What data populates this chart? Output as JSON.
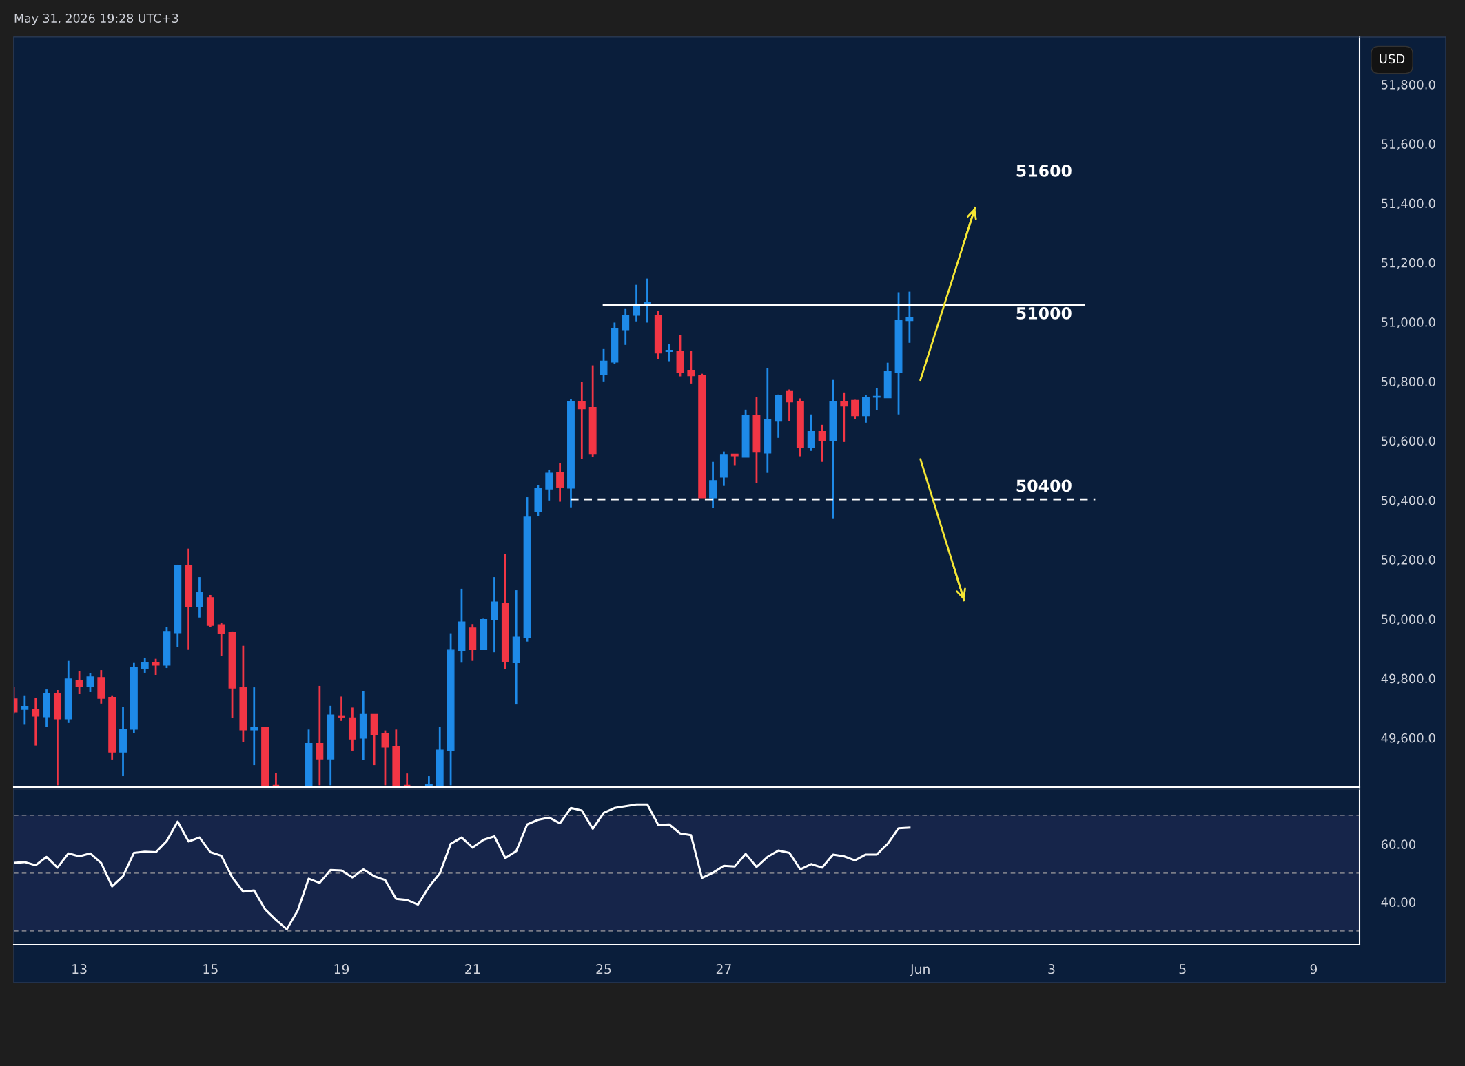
{
  "chart_data": [
    {
      "type": "candlestick",
      "title": "May 31, 2026 19:28 UTC+3",
      "ylabel": "USD",
      "categories": [
        null,
        null,
        null,
        null,
        null,
        null,
        null,
        null,
        null,
        null,
        null,
        null,
        null,
        null,
        null,
        null,
        null,
        null,
        null,
        null,
        null,
        null,
        null,
        null,
        null,
        null,
        null,
        null,
        null,
        null,
        null,
        null,
        null,
        null,
        null,
        null,
        null,
        null,
        null,
        null,
        null,
        null,
        null,
        null,
        null,
        null,
        null,
        null,
        null,
        null,
        null,
        null,
        null,
        null,
        null,
        null,
        null,
        null,
        null,
        null,
        null,
        null,
        null,
        null,
        null,
        null,
        null,
        null,
        null,
        null,
        null,
        null,
        null,
        null,
        null,
        null,
        null,
        null,
        null,
        null,
        null,
        null,
        null,
        null,
        null,
        null,
        null,
        null,
        null,
        null,
        null,
        null,
        null,
        null,
        null,
        null,
        null,
        null,
        null,
        null,
        null,
        null,
        null,
        null,
        null,
        null,
        null,
        null,
        null,
        null,
        null,
        null,
        null,
        null,
        null,
        null,
        null,
        null,
        null,
        null,
        null,
        null,
        null,
        null
      ],
      "ohlc": [
        [
          49731,
          49770,
          49681,
          49687
        ],
        [
          49696,
          49743,
          49644,
          49706
        ],
        [
          49696,
          49735,
          49574,
          49673
        ],
        [
          49671,
          49763,
          49638,
          49750
        ],
        [
          49750,
          49761,
          49440,
          49664
        ],
        [
          49664,
          49859,
          49650,
          49798
        ],
        [
          49794,
          49824,
          49747,
          49773
        ],
        [
          49773,
          49817,
          49754,
          49805
        ],
        [
          49803,
          49828,
          49715,
          49733
        ],
        [
          49736,
          49743,
          49527,
          49552
        ],
        [
          49552,
          49703,
          49471,
          49629
        ],
        [
          49629,
          49852,
          49617,
          49838
        ],
        [
          49833,
          49870,
          49819,
          49852
        ],
        [
          49854,
          49866,
          49812,
          49845
        ],
        [
          49845,
          49974,
          49835,
          49956
        ],
        [
          49954,
          50183,
          49905,
          50181
        ],
        [
          50181,
          50237,
          49896,
          50042
        ],
        [
          50042,
          50141,
          50005,
          50090
        ],
        [
          50072,
          50081,
          49974,
          49979
        ],
        [
          49981,
          49988,
          49875,
          49951
        ],
        [
          49954,
          49956,
          49666,
          49768
        ],
        [
          49770,
          49910,
          49585,
          49627
        ],
        [
          49627,
          49770,
          49508,
          49636
        ],
        [
          49636,
          49636,
          49440,
          49440
        ],
        [
          49440,
          49482,
          49440,
          49440
        ],
        null,
        null,
        [
          49440,
          49628,
          49440,
          49581
        ],
        [
          49581,
          49775,
          49440,
          49529
        ],
        [
          49529,
          49708,
          49440,
          49677
        ],
        [
          49672,
          49739,
          49657,
          49670
        ],
        [
          49667,
          49702,
          49557,
          49596
        ],
        [
          49599,
          49757,
          49526,
          49679
        ],
        [
          49679,
          49679,
          49508,
          49610
        ],
        [
          49614,
          49625,
          49440,
          49569
        ],
        [
          49570,
          49628,
          49440,
          49440
        ],
        [
          49440,
          49480,
          49440,
          49440
        ],
        null,
        [
          49440,
          49471,
          49440,
          49442
        ],
        [
          49440,
          49637,
          49440,
          49559
        ],
        [
          49557,
          49952,
          49440,
          49895
        ],
        [
          49893,
          50102,
          49853,
          49990
        ],
        [
          49970,
          49983,
          49859,
          49897
        ],
        [
          49897,
          50001,
          49897,
          49998
        ],
        [
          49998,
          50141,
          49888,
          50057
        ],
        [
          50054,
          50220,
          49832,
          49856
        ],
        [
          49853,
          50097,
          49712,
          49939
        ],
        [
          49939,
          50410,
          49924,
          50343
        ],
        [
          50361,
          50451,
          50346,
          50441
        ],
        [
          50438,
          50503,
          50399,
          50491
        ],
        [
          50492,
          50525,
          50395,
          50443
        ],
        [
          50441,
          50740,
          50376,
          50733
        ],
        [
          50733,
          50798,
          50538,
          50708
        ],
        [
          50712,
          50854,
          50545,
          50555
        ],
        [
          50824,
          50909,
          50800,
          50868
        ],
        [
          50865,
          50998,
          50858,
          50977
        ],
        [
          50974,
          51046,
          50923,
          51023
        ],
        [
          51023,
          51125,
          51002,
          51060
        ],
        [
          51058,
          51146,
          50998,
          51067
        ],
        [
          51021,
          51037,
          50875,
          50896
        ],
        [
          50901,
          50926,
          50868,
          50905
        ],
        [
          50900,
          50956,
          50817,
          50831
        ],
        [
          50835,
          50903,
          50793,
          50819
        ],
        [
          50819,
          50826,
          50408,
          50408
        ],
        [
          50408,
          50529,
          50374,
          50466
        ],
        [
          50478,
          50564,
          50448,
          50552
        ],
        [
          50555,
          50555,
          50518,
          50550
        ],
        [
          50545,
          50705,
          50545,
          50687
        ],
        [
          50687,
          50747,
          50457,
          50562
        ],
        [
          50559,
          50844,
          50492,
          50671
        ],
        [
          50666,
          50756,
          50610,
          50752
        ],
        [
          50766,
          50773,
          50666,
          50731
        ],
        [
          50733,
          50743,
          50548,
          50578
        ],
        [
          50578,
          50689,
          50566,
          50631
        ],
        [
          50631,
          50654,
          50529,
          50601
        ],
        [
          50601,
          50805,
          50339,
          50733
        ],
        [
          50733,
          50763,
          50596,
          50717
        ],
        [
          50736,
          50738,
          50673,
          50685
        ],
        [
          50685,
          50754,
          50661,
          50745
        ],
        [
          50747,
          50777,
          50703,
          50750
        ],
        [
          50745,
          50863,
          50745,
          50833
        ],
        [
          50831,
          51100,
          50689,
          51007
        ],
        [
          51005,
          51102,
          50930,
          51014
        ],
        null,
        null,
        null,
        null,
        null,
        null,
        null,
        null,
        null,
        null,
        null,
        null,
        null,
        null,
        null,
        null,
        null,
        null,
        null,
        null,
        null,
        null,
        null,
        null,
        null,
        null,
        null,
        null,
        null,
        null,
        null,
        null,
        null,
        null,
        null,
        null,
        null,
        null,
        null,
        null,
        null
      ],
      "colors": [
        "#f23645",
        "#1e8ae8",
        "#f23645",
        "#1e8ae8",
        "#f23645",
        "#1e8ae8",
        "#f23645",
        "#1e8ae8",
        "#f23645",
        "#f23645",
        "#1e8ae8",
        "#1e8ae8",
        "#1e8ae8",
        "#f23645",
        "#1e8ae8",
        "#1e8ae8",
        "#f23645",
        "#1e8ae8",
        "#f23645",
        "#f23645",
        "#f23645",
        "#f23645",
        "#1e8ae8",
        "#f23645",
        "#f23645",
        null,
        null,
        "#1e8ae8",
        "#f23645",
        "#1e8ae8",
        "#f23645",
        "#f23645",
        "#1e8ae8",
        "#f23645",
        "#f23645",
        "#f23645",
        "#f23645",
        null,
        "#1e8ae8",
        "#1e8ae8",
        "#1e8ae8",
        "#1e8ae8",
        "#f23645",
        "#1e8ae8",
        "#1e8ae8",
        "#f23645",
        "#1e8ae8",
        "#1e8ae8",
        "#1e8ae8",
        "#1e8ae8",
        "#f23645",
        "#1e8ae8",
        "#f23645",
        "#f23645",
        "#1e8ae8",
        "#1e8ae8",
        "#1e8ae8",
        "#1e8ae8",
        "#1e8ae8",
        "#f23645",
        "#1e8ae8",
        "#f23645",
        "#f23645",
        "#f23645",
        "#1e8ae8",
        "#1e8ae8",
        "#f23645",
        "#1e8ae8",
        "#f23645",
        "#1e8ae8",
        "#1e8ae8",
        "#f23645",
        "#f23645",
        "#1e8ae8",
        "#f23645",
        "#1e8ae8",
        "#f23645",
        "#f23645",
        "#1e8ae8",
        "#1e8ae8",
        "#1e8ae8",
        "#1e8ae8",
        "#1e8ae8",
        null,
        null,
        null,
        null,
        null,
        null,
        null,
        null,
        null,
        null,
        null,
        null,
        null,
        null,
        null,
        null,
        null,
        null,
        null,
        null,
        null,
        null,
        null,
        null,
        null,
        null,
        null,
        null,
        null,
        null,
        null,
        null,
        null,
        null,
        null,
        null,
        null,
        null,
        null,
        null,
        null
      ],
      "series": [
        {
          "type": "line",
          "color": "#ffffff",
          "line_style": "solid",
          "values": [
            null,
            null,
            null,
            null,
            null,
            null,
            null,
            null,
            null,
            null,
            null,
            null,
            null,
            null,
            null,
            null,
            null,
            null,
            null,
            null,
            null,
            null,
            null,
            null,
            null,
            null,
            null,
            null,
            null,
            null,
            null,
            null,
            null,
            null,
            null,
            null,
            null,
            null,
            null,
            null,
            null,
            null,
            null,
            null,
            null,
            null,
            null,
            null,
            null,
            null,
            null,
            null,
            null,
            null,
            51057,
            51057,
            51057,
            51057,
            51057,
            51057,
            51057,
            51057,
            51057,
            51057,
            51057,
            51057,
            51057,
            51057,
            51057,
            51057,
            51057,
            51057,
            51057,
            51057,
            51057,
            51057,
            51057,
            51057,
            51057,
            51057,
            51057,
            51057,
            51057,
            51057,
            51057,
            51057,
            51057,
            51057,
            51057,
            51057,
            51057,
            51057,
            51057,
            51057,
            51057,
            51057,
            51057,
            51057,
            51057,
            null,
            null,
            null,
            null,
            null,
            null,
            null,
            null,
            null,
            null,
            null,
            null,
            null,
            null,
            null,
            null,
            null,
            null,
            null,
            null,
            null,
            null,
            null,
            null,
            null
          ]
        },
        {
          "type": "line",
          "color": "#ffffff",
          "line_style": "dashed",
          "values": [
            null,
            null,
            null,
            null,
            null,
            null,
            null,
            null,
            null,
            null,
            null,
            null,
            null,
            null,
            null,
            null,
            null,
            null,
            null,
            null,
            null,
            null,
            null,
            null,
            null,
            null,
            null,
            null,
            null,
            null,
            null,
            null,
            null,
            null,
            null,
            null,
            null,
            null,
            null,
            null,
            null,
            null,
            null,
            null,
            null,
            null,
            null,
            null,
            null,
            null,
            null,
            50403,
            50403,
            50403,
            50403,
            50403,
            50403,
            50403,
            50403,
            50403,
            50403,
            50403,
            50403,
            50403,
            50403,
            50403,
            50403,
            50403,
            50403,
            50403,
            50403,
            50403,
            50403,
            50403,
            50403,
            50403,
            50403,
            50403,
            50403,
            50403,
            50403,
            50403,
            50403,
            50403,
            50403,
            50403,
            50403,
            50403,
            50403,
            50403,
            50403,
            50403,
            50403,
            50403,
            50403,
            50403,
            50403,
            50403,
            50403,
            50403,
            null,
            null,
            null,
            null,
            null,
            null,
            null,
            null,
            null,
            null,
            null,
            null,
            null,
            null,
            null,
            null,
            null,
            null,
            null,
            null,
            null,
            null,
            null,
            null
          ]
        },
        {
          "type": "line",
          "color": "#f5e634",
          "line_style": "solid",
          "values": [
            null,
            null,
            null,
            null,
            null,
            null,
            null,
            null,
            null,
            null,
            null,
            null,
            null,
            null,
            null,
            null,
            null,
            null,
            null,
            null,
            null,
            null,
            null,
            null,
            null,
            null,
            null,
            null,
            null,
            null,
            null,
            null,
            null,
            null,
            null,
            null,
            null,
            null,
            null,
            null,
            null,
            null,
            null,
            null,
            null,
            null,
            null,
            null,
            null,
            null,
            null,
            null,
            null,
            null,
            null,
            null,
            null,
            null,
            null,
            null,
            null,
            null,
            null,
            null,
            null,
            null,
            null,
            null,
            null,
            null,
            null,
            null,
            null,
            null,
            null,
            null,
            null,
            null,
            null,
            null,
            null,
            null,
            null,
            50805,
            50921,
            51037,
            51153,
            51269,
            51385,
            null,
            null,
            null,
            null,
            null,
            null,
            null,
            null,
            null,
            null,
            null,
            null,
            null,
            null,
            null,
            null,
            null,
            null,
            null,
            null,
            null,
            null,
            null,
            null,
            null,
            null,
            null,
            null,
            null,
            null,
            null,
            null,
            null,
            null,
            null
          ]
        },
        {
          "type": "line",
          "color": "#f5e634",
          "line_style": "solid",
          "values": [
            null,
            null,
            null,
            null,
            null,
            null,
            null,
            null,
            null,
            null,
            null,
            null,
            null,
            null,
            null,
            null,
            null,
            null,
            null,
            null,
            null,
            null,
            null,
            null,
            null,
            null,
            null,
            null,
            null,
            null,
            null,
            null,
            null,
            null,
            null,
            null,
            null,
            null,
            null,
            null,
            null,
            null,
            null,
            null,
            null,
            null,
            null,
            null,
            null,
            null,
            null,
            null,
            null,
            null,
            null,
            null,
            null,
            null,
            null,
            null,
            null,
            null,
            null,
            null,
            null,
            null,
            null,
            null,
            null,
            null,
            null,
            null,
            null,
            null,
            null,
            null,
            null,
            null,
            null,
            null,
            null,
            null,
            null,
            50538,
            50419,
            50300,
            50182,
            50063,
            null,
            null,
            null,
            null,
            null,
            null,
            null,
            null,
            null,
            null,
            null,
            null,
            null,
            null,
            null,
            null,
            null,
            null,
            null,
            null,
            null,
            null,
            null,
            null,
            null,
            null,
            null,
            null,
            null,
            null,
            null,
            null,
            null,
            null,
            null,
            null
          ]
        }
      ],
      "annotations": [
        "51600",
        "51000",
        "50400"
      ],
      "ylim": [
        49434,
        51959
      ],
      "yticks": [
        {
          "value": 49600,
          "label": "49,600.0"
        },
        {
          "value": 49800,
          "label": "49,800.0"
        },
        {
          "value": 50000,
          "label": "50,000.0"
        },
        {
          "value": 50200,
          "label": "50,200.0"
        },
        {
          "value": 50400,
          "label": "50,400.0"
        },
        {
          "value": 50600,
          "label": "50,600.0"
        },
        {
          "value": 50800,
          "label": "50,800.0"
        },
        {
          "value": 51000,
          "label": "51,000.0"
        },
        {
          "value": 51200,
          "label": "51,200.0"
        },
        {
          "value": 51400,
          "label": "51,400.0"
        },
        {
          "value": 51600,
          "label": "51,600.0"
        },
        {
          "value": 51800,
          "label": "51,800.0"
        }
      ],
      "tick_labels": "y",
      "grid": false,
      "legend": false
    },
    {
      "type": "line",
      "categories": [
        null,
        null,
        null,
        null,
        null,
        null,
        "13",
        null,
        null,
        null,
        null,
        null,
        null,
        null,
        null,
        null,
        null,
        null,
        "15",
        null,
        null,
        null,
        null,
        null,
        null,
        null,
        null,
        null,
        null,
        null,
        "19",
        null,
        null,
        null,
        null,
        null,
        null,
        null,
        null,
        null,
        null,
        null,
        "21",
        null,
        null,
        null,
        null,
        null,
        null,
        null,
        null,
        null,
        null,
        null,
        "25",
        null,
        null,
        null,
        null,
        null,
        null,
        null,
        null,
        null,
        null,
        "27",
        null,
        null,
        null,
        null,
        null,
        null,
        null,
        null,
        null,
        null,
        null,
        null,
        null,
        null,
        null,
        null,
        null,
        "Jun",
        null,
        null,
        null,
        null,
        null,
        null,
        null,
        null,
        null,
        null,
        null,
        "3",
        null,
        null,
        null,
        null,
        null,
        null,
        null,
        null,
        null,
        null,
        null,
        "5",
        null,
        null,
        null,
        null,
        null,
        null,
        null,
        null,
        null,
        null,
        null,
        "9",
        null,
        null,
        null,
        null
      ],
      "series": [
        {
          "color": "#ffffff",
          "values": [
            53.5,
            53.8,
            52.7,
            55.6,
            51.9,
            56.8,
            55.8,
            56.8,
            53.5,
            45.4,
            48.9,
            57.0,
            57.4,
            57.2,
            61.1,
            67.8,
            60.9,
            62.3,
            57.2,
            56.0,
            48.5,
            43.6,
            44.0,
            37.5,
            33.8,
            30.6,
            37.1,
            48.1,
            46.6,
            51.1,
            50.9,
            48.5,
            51.3,
            48.9,
            47.6,
            41.1,
            40.7,
            39.1,
            45.2,
            49.9,
            60.1,
            62.3,
            58.8,
            61.5,
            62.7,
            55.2,
            57.6,
            66.8,
            68.4,
            69.2,
            67.2,
            72.5,
            71.6,
            65.3,
            70.8,
            72.5,
            73.1,
            73.7,
            73.7,
            66.6,
            66.8,
            63.7,
            63.1,
            48.3,
            50.1,
            52.5,
            52.3,
            56.6,
            52.1,
            55.6,
            57.8,
            57.0,
            51.3,
            53.1,
            51.9,
            56.4,
            55.8,
            54.4,
            56.4,
            56.4,
            60.1,
            65.5,
            65.7,
            null,
            null,
            null,
            null,
            null,
            null,
            null,
            null,
            null,
            null,
            null,
            null,
            null,
            null,
            null,
            null,
            null,
            null,
            null,
            null,
            null,
            null,
            null,
            null,
            null,
            null,
            null,
            null,
            null,
            null,
            null,
            null,
            null,
            null,
            null,
            null,
            null,
            null,
            null,
            null,
            null
          ]
        }
      ],
      "ref_lines": [
        {
          "axis": "y",
          "value": 70,
          "color": "#787b86",
          "line_style": "dashed"
        },
        {
          "axis": "y",
          "value": 50,
          "color": "#787b86",
          "line_style": "dashed"
        },
        {
          "axis": "y",
          "value": 30,
          "color": "#787b86",
          "line_style": "dashed"
        }
      ],
      "bands": [
        {
          "axis": "y",
          "from": 30,
          "to": 70,
          "color": "#16254a"
        }
      ],
      "ylim": [
        25.2,
        79
      ],
      "yticks": [
        {
          "value": 40,
          "label": "40.00"
        },
        {
          "value": 60,
          "label": "60.00"
        }
      ],
      "grid": false,
      "legend": false
    }
  ]
}
